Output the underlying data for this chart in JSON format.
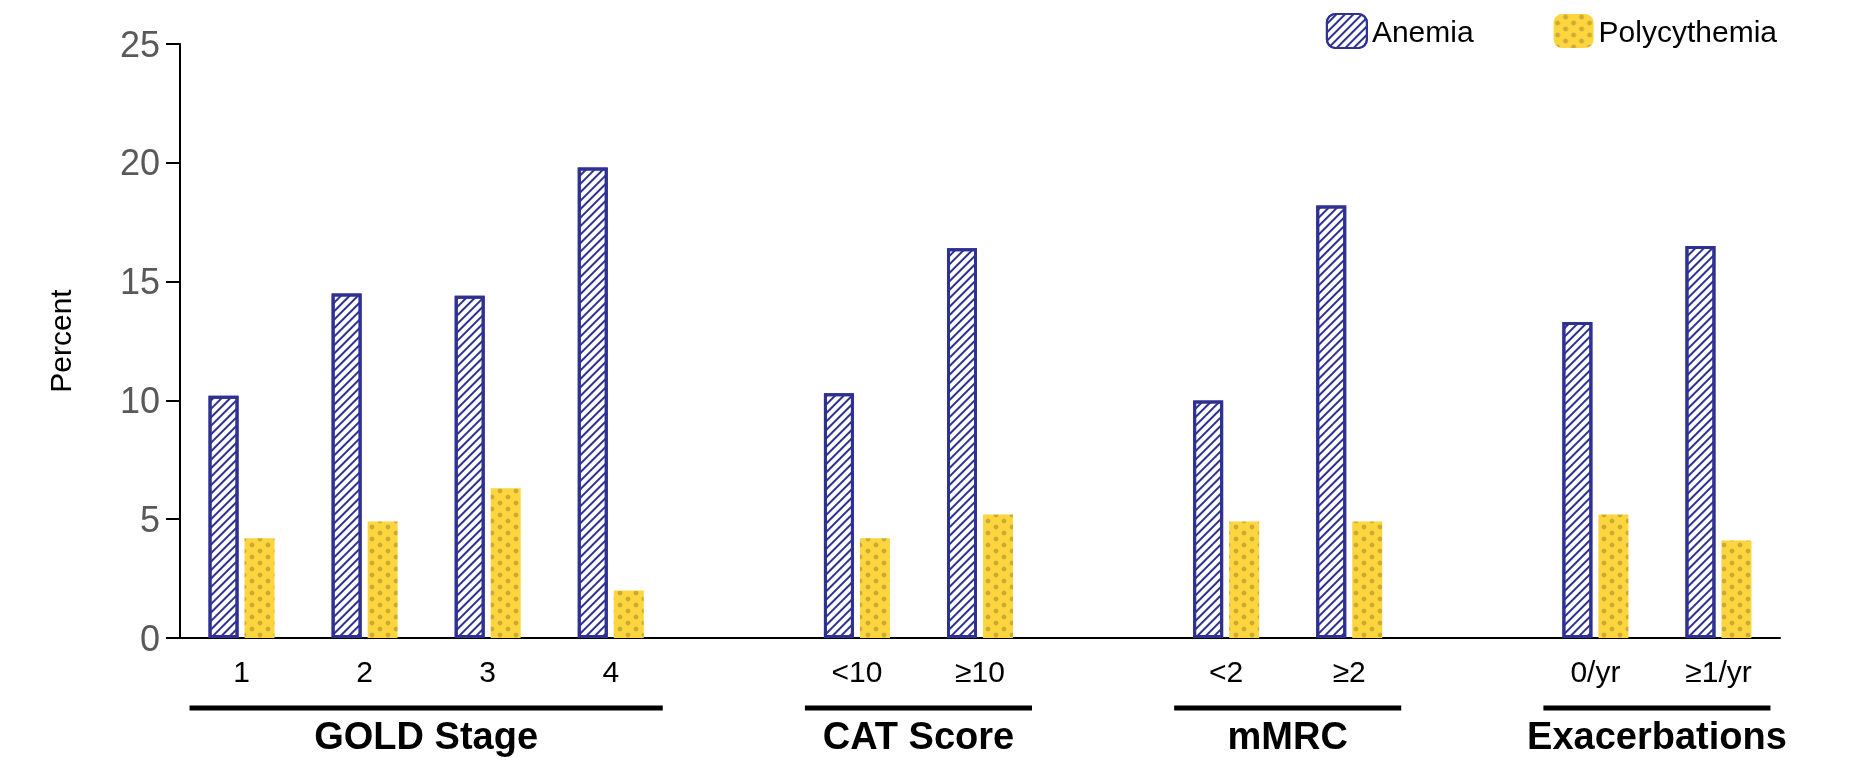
{
  "chart_data": {
    "type": "bar",
    "ylabel": "Percent",
    "categories": [
      "1",
      "2",
      "3",
      "4",
      null,
      "<10",
      "≥10",
      null,
      "<2",
      "≥2",
      null,
      "0/yr",
      "≥1/yr"
    ],
    "series": [
      {
        "name": "Anemia",
        "color": "#2e3192",
        "values": [
          10.2,
          14.5,
          14.4,
          19.8,
          null,
          10.3,
          16.4,
          null,
          10.0,
          18.2,
          null,
          13.3,
          16.5
        ]
      },
      {
        "name": "Polycythemia",
        "color": "#fdd53e",
        "values": [
          4.2,
          4.9,
          6.3,
          2.0,
          null,
          4.2,
          5.2,
          null,
          4.9,
          4.9,
          null,
          5.2,
          4.1
        ]
      }
    ],
    "annotations": [
      "GOLD Stage",
      "CAT Score",
      "mMRC",
      "Exacerbations"
    ],
    "ylim": [
      0,
      25
    ],
    "yticks": [
      0,
      5,
      10,
      15,
      20,
      25
    ],
    "grid": false,
    "legend": "top right"
  }
}
